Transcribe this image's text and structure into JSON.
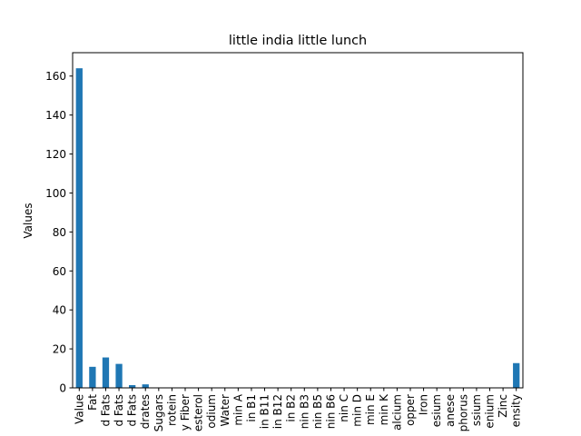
{
  "chart_data": {
    "type": "bar",
    "title": "little india little lunch",
    "xlabel": "",
    "ylabel": "Values",
    "ylim": [
      0,
      172
    ],
    "yticks": [
      0,
      20,
      40,
      60,
      80,
      100,
      120,
      140,
      160
    ],
    "grid": false,
    "bar_color": "#1f77b4",
    "categories": [
      "Value",
      "Fat",
      "d Fats",
      "d Fats",
      "d Fats",
      "drates",
      "Sugars",
      "rotein",
      "y Fiber",
      "esterol",
      "odium",
      "Water",
      "min A",
      "in B1",
      "in B11",
      "in B12",
      "in B2",
      "nin B3",
      "nin B5",
      "nin B6",
      "nin C",
      "min D",
      "min E",
      "min K",
      "alcium",
      "opper",
      "Iron",
      "esium",
      "anese",
      "phorus",
      "ssium",
      "enium",
      "Zinc",
      "ensity"
    ],
    "values": [
      164,
      10.8,
      15.6,
      12.3,
      1.4,
      1.8,
      0,
      0,
      0,
      0,
      0,
      0,
      0,
      0,
      0,
      0,
      0,
      0,
      0,
      0,
      0,
      0,
      0,
      0,
      0,
      0,
      0,
      0,
      0,
      0,
      0,
      0,
      0,
      12.7
    ]
  }
}
